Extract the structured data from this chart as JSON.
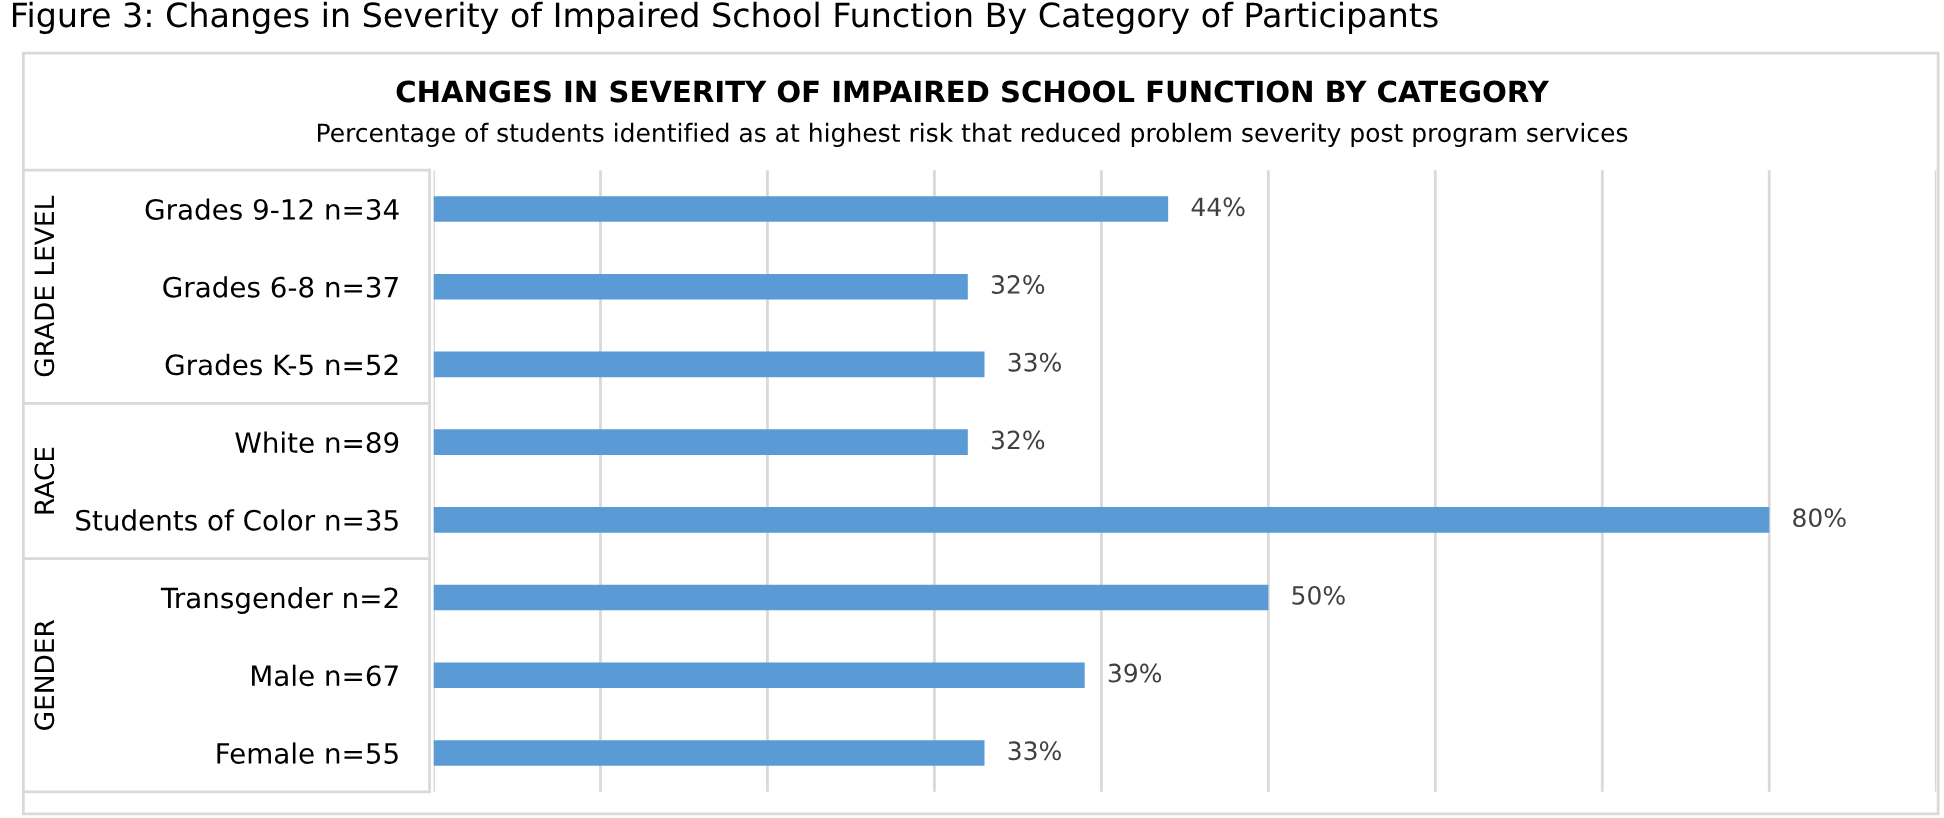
{
  "chart_data": {
    "type": "bar",
    "orientation": "horizontal",
    "title": "CHANGES IN SEVERITY OF IMPAIRED SCHOOL FUNCTION BY CATEGORY",
    "subtitle": "Percentage of students identified as at highest risk that reduced problem severity post program services",
    "annotations": [
      "Figure 3: Changes in Severity of Impaired School Function By Category of Participants",
      "GRADE LEVEL",
      "RACE",
      "GENDER"
    ],
    "categories": [
      "Grades 9-12 n=34",
      "Grades 6-8 n=37",
      "Grades K-5 n=52",
      "White n=89",
      "Students of Color n=35",
      "Transgender n=2",
      "Male n=67",
      "Female n=55"
    ],
    "series": [
      {
        "color": "#5b9bd5",
        "values": [
          44,
          32,
          33,
          32,
          80,
          50,
          39,
          33
        ],
        "value_labels": [
          "44%",
          "32%",
          "33%",
          "32%",
          "80%",
          "50%",
          "39%",
          "33%"
        ]
      }
    ],
    "xlim": [
      0,
      90
    ],
    "xticks": [
      {
        "value": 0,
        "label": null
      },
      {
        "value": 10,
        "label": null
      },
      {
        "value": 20,
        "label": null
      },
      {
        "value": 30,
        "label": null
      },
      {
        "value": 40,
        "label": null
      },
      {
        "value": 50,
        "label": null
      },
      {
        "value": 60,
        "label": null
      },
      {
        "value": 70,
        "label": null
      },
      {
        "value": 80,
        "label": null
      },
      {
        "value": 90,
        "label": null
      }
    ],
    "grid": "x",
    "tick_labels": "y"
  }
}
